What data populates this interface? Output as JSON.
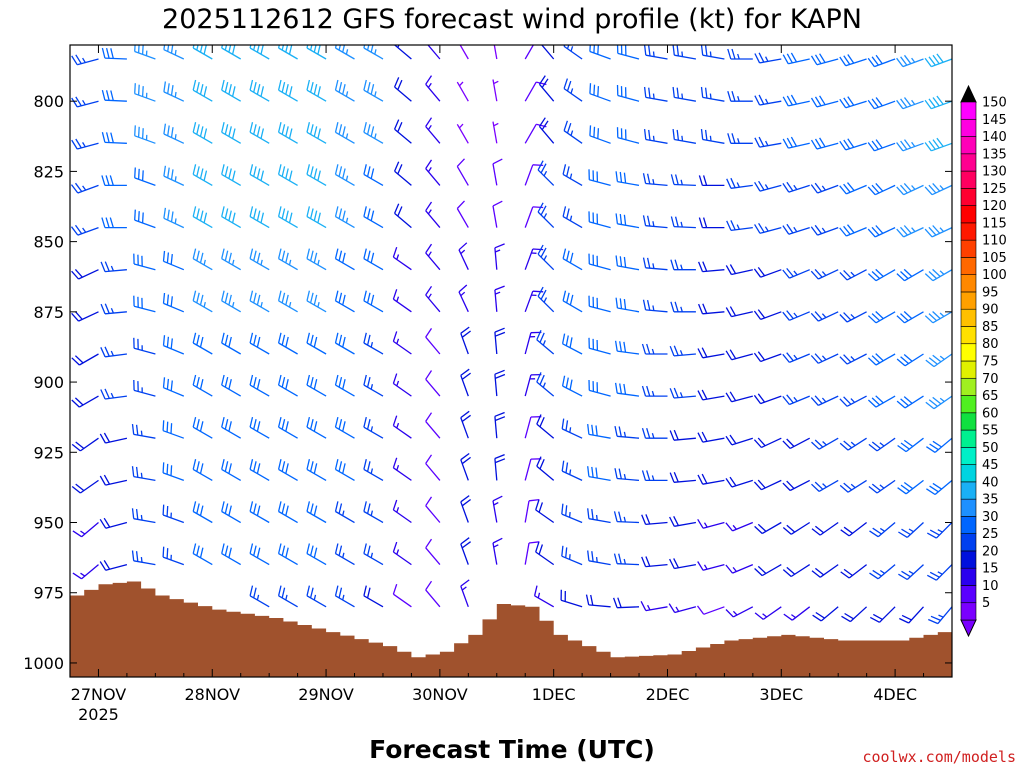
{
  "chart_data": {
    "type": "wind-barb-profile",
    "title": "2025112612 GFS forecast wind profile (kt) for KAPN",
    "xlabel": "Forecast Time (UTC)",
    "credit": "coolwx.com/models",
    "units": "kt",
    "y_axis": {
      "ticks": [
        "800",
        "825",
        "850",
        "875",
        "900",
        "925",
        "950",
        "975",
        "1000"
      ],
      "range_hPa": [
        780,
        1005
      ],
      "levels_hPa": [
        785,
        800,
        815,
        830,
        845,
        860,
        875,
        890,
        905,
        920,
        935,
        950,
        965,
        980,
        995
      ]
    },
    "x_axis": {
      "ticks": [
        "27NOV",
        "28NOV",
        "29NOV",
        "30NOV",
        "1DEC",
        "2DEC",
        "3DEC",
        "4DEC"
      ],
      "year_label": "2025",
      "range_days": [
        -0.25,
        7.5
      ],
      "step_hours": 6
    },
    "colorbar": {
      "labels": [
        "5",
        "10",
        "15",
        "20",
        "25",
        "30",
        "35",
        "40",
        "45",
        "50",
        "55",
        "60",
        "65",
        "70",
        "75",
        "80",
        "85",
        "90",
        "95",
        "100",
        "105",
        "110",
        "115",
        "120",
        "125",
        "130",
        "135",
        "140",
        "145",
        "150"
      ],
      "colors": [
        "#7a00ff",
        "#5a00ff",
        "#2a00ee",
        "#0010dd",
        "#0040f0",
        "#0066ff",
        "#1e90ff",
        "#1ab0f5",
        "#00d4e0",
        "#00f0c8",
        "#00f090",
        "#10e040",
        "#50f020",
        "#a0f020",
        "#e0f000",
        "#ffff00",
        "#ffe000",
        "#ffc000",
        "#ffa000",
        "#ff8800",
        "#ff6800",
        "#ff4000",
        "#ff1800",
        "#ff0000",
        "#ff0030",
        "#ff0060",
        "#ff0090",
        "#ff00b8",
        "#ff00e0",
        "#ff00ff"
      ]
    },
    "wind_keyframes_days": [
      -0.25,
      0,
      0.5,
      1,
      2,
      2.5,
      2.75,
      3,
      3.25,
      3.5,
      3.75,
      4,
      4.5,
      5,
      5.5,
      6,
      7,
      7.5
    ],
    "wind_speed_kt": [
      [
        20,
        27,
        34,
        40,
        40,
        33,
        20,
        17,
        6,
        6,
        8,
        21,
        29,
        26,
        25,
        27,
        31,
        38
      ],
      [
        20,
        24,
        32,
        38,
        38,
        31,
        18,
        15,
        11,
        10,
        12,
        23,
        29,
        26,
        22,
        24,
        30,
        36
      ],
      [
        18,
        22,
        29,
        35,
        35,
        29,
        17,
        13,
        17,
        17,
        15,
        25,
        31,
        27,
        20,
        22,
        28,
        34
      ],
      [
        16,
        20,
        27,
        32,
        32,
        27,
        15,
        12,
        20,
        20,
        14,
        24,
        32,
        27,
        20,
        22,
        28,
        34
      ],
      [
        14,
        18,
        25,
        30,
        30,
        25,
        14,
        12,
        20,
        19,
        12,
        22,
        29,
        24,
        18,
        20,
        26,
        31
      ],
      [
        12,
        17,
        23,
        28,
        28,
        24,
        13,
        12,
        18,
        17,
        10,
        20,
        25,
        20,
        15,
        18,
        23,
        27
      ],
      [
        10,
        15,
        22,
        26,
        26,
        22,
        12,
        11,
        16,
        15,
        9,
        17,
        20,
        16,
        12,
        15,
        20,
        23
      ]
    ],
    "wind_direction_deg": [
      [
        250,
        255,
        290,
        300,
        300,
        300,
        310,
        320,
        330,
        350,
        30,
        320,
        290,
        280,
        280,
        260,
        250,
        250
      ],
      [
        245,
        250,
        290,
        300,
        300,
        300,
        310,
        320,
        330,
        350,
        20,
        315,
        285,
        275,
        270,
        255,
        245,
        245
      ],
      [
        240,
        245,
        285,
        300,
        300,
        300,
        305,
        320,
        335,
        355,
        20,
        315,
        285,
        275,
        265,
        250,
        240,
        240
      ],
      [
        235,
        240,
        285,
        300,
        300,
        300,
        305,
        320,
        340,
        355,
        15,
        310,
        285,
        270,
        260,
        250,
        240,
        235
      ],
      [
        230,
        235,
        280,
        300,
        300,
        300,
        305,
        320,
        340,
        355,
        15,
        310,
        280,
        270,
        260,
        245,
        235,
        230
      ],
      [
        225,
        230,
        280,
        300,
        300,
        300,
        305,
        320,
        340,
        350,
        10,
        305,
        280,
        265,
        255,
        240,
        230,
        225
      ],
      [
        220,
        225,
        275,
        300,
        300,
        300,
        305,
        320,
        340,
        350,
        10,
        300,
        275,
        260,
        250,
        235,
        225,
        220
      ]
    ],
    "surface_pressure_keyframes": {
      "days": [
        -0.25,
        0,
        0.25,
        0.5,
        1,
        1.5,
        2,
        2.5,
        2.75,
        3,
        3.25,
        3.5,
        3.75,
        4,
        4.5,
        5,
        5.5,
        6,
        6.5,
        7,
        7.5
      ],
      "hPa": [
        976,
        972,
        971,
        976,
        981,
        984,
        989,
        994,
        998,
        996,
        990,
        979,
        980,
        990,
        998,
        997,
        992,
        990,
        992,
        992,
        988
      ]
    }
  }
}
